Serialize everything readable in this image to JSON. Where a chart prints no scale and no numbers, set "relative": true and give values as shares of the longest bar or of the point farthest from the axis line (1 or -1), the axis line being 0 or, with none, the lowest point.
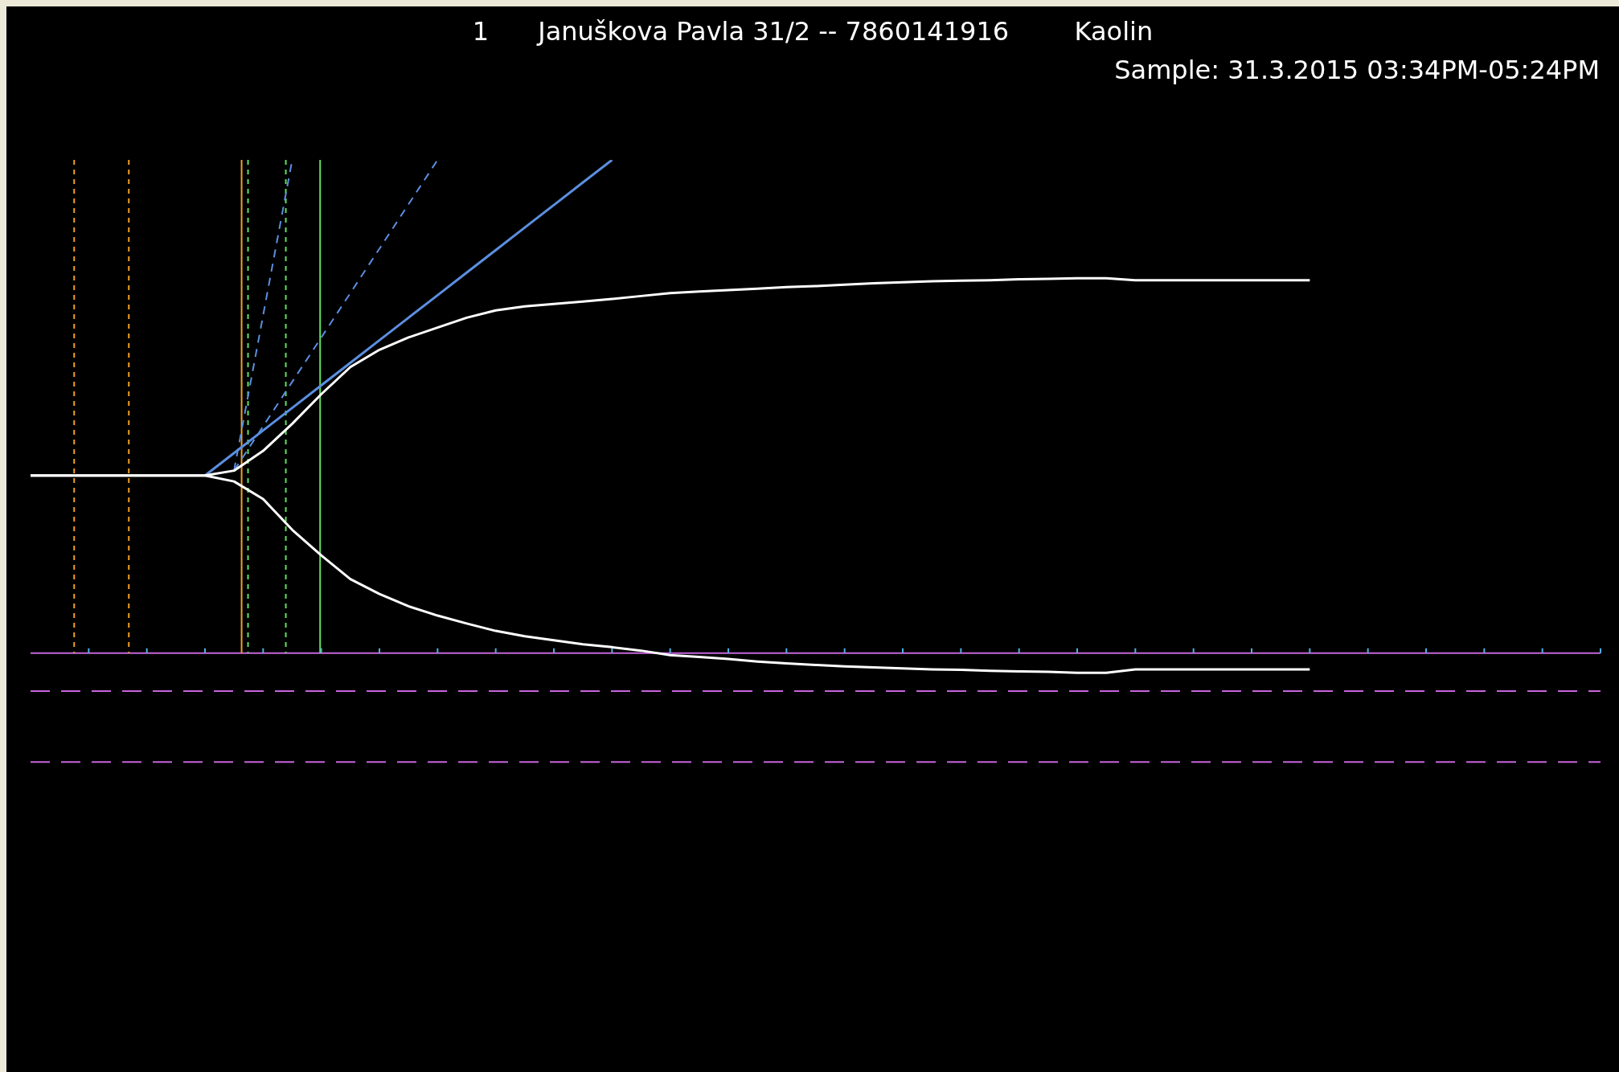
{
  "chart_data": {
    "type": "line",
    "title": "1      Januškova Pavla 31/2 -- 7860141916        Kaolin",
    "subtitle": "Sample: 31.3.2015 03:34PM-05:24PM",
    "relative": true,
    "legend": false,
    "grid": false,
    "marker": "none",
    "categories": [
      null,
      null,
      null,
      null,
      null,
      null,
      null,
      null,
      null,
      null,
      null,
      null,
      null,
      null,
      null,
      null,
      null,
      null,
      null,
      null,
      null,
      null,
      null,
      null,
      null,
      null,
      null,
      null,
      null,
      null,
      null,
      null,
      null,
      null,
      null,
      null,
      null,
      null,
      null,
      null,
      null,
      null,
      null,
      null,
      null,
      null,
      null,
      null,
      null,
      null,
      null,
      null,
      null,
      null,
      null
    ],
    "series": [
      {
        "color": "#ffffff",
        "line_style": "solid",
        "values": [
          0.36,
          0.36,
          0.36,
          0.36,
          0.36,
          0.36,
          0.36,
          0.37,
          0.41,
          0.465,
          0.525,
          0.58,
          0.615,
          0.64,
          0.66,
          0.68,
          0.695,
          0.703,
          0.708,
          0.713,
          0.718,
          0.724,
          0.73,
          0.733,
          0.736,
          0.739,
          0.742,
          0.744,
          0.747,
          0.75,
          0.752,
          0.754,
          0.755,
          0.756,
          0.758,
          0.759,
          0.76,
          0.76,
          0.756,
          0.756,
          0.756,
          0.756,
          0.756,
          0.756,
          0.756,
          null,
          null,
          null,
          null,
          null,
          null,
          null,
          null,
          null,
          null
        ]
      },
      {
        "color": "#ffffff",
        "line_style": "solid",
        "values": [
          0.36,
          0.36,
          0.36,
          0.36,
          0.36,
          0.36,
          0.36,
          0.348,
          0.3125,
          0.25,
          0.198,
          0.15,
          0.12,
          0.095,
          0.076,
          0.06,
          0.045,
          0.034,
          0.026,
          0.018,
          0.012,
          0.005,
          -0.004,
          -0.008,
          -0.012,
          -0.017,
          -0.021,
          -0.024,
          -0.027,
          -0.029,
          -0.031,
          -0.033,
          -0.034,
          -0.036,
          -0.037,
          -0.038,
          -0.04,
          -0.04,
          -0.033,
          -0.033,
          -0.033,
          -0.033,
          -0.033,
          -0.033,
          -0.033,
          null,
          null,
          null,
          null,
          null,
          null,
          null,
          null,
          null,
          null
        ]
      },
      {
        "color": "#5b8fe0",
        "line_style": "solid",
        "values": [
          null,
          null,
          null,
          null,
          null,
          null,
          0.36,
          0.4057,
          0.4514,
          0.4971,
          0.5429,
          0.5886,
          0.6343,
          0.68,
          0.7257,
          0.7714,
          0.8171,
          0.8629,
          0.9086,
          0.9543,
          1.0,
          null,
          null,
          null,
          null,
          null,
          null,
          null,
          null,
          null,
          null,
          null,
          null,
          null,
          null,
          null,
          null,
          null,
          null,
          null,
          null,
          null,
          null,
          null,
          null,
          null,
          null,
          null,
          null,
          null,
          null,
          null,
          null,
          null,
          null
        ]
      },
      {
        "color": "#5b8fe0",
        "line_style": "dashed",
        "values": [
          null,
          null,
          null,
          null,
          null,
          null,
          null,
          0.37,
          0.685,
          1.0,
          null,
          null,
          null,
          null,
          null,
          null,
          null,
          null,
          null,
          null,
          null,
          null,
          null,
          null,
          null,
          null,
          null,
          null,
          null,
          null,
          null,
          null,
          null,
          null,
          null,
          null,
          null,
          null,
          null,
          null,
          null,
          null,
          null,
          null,
          null,
          null,
          null,
          null,
          null,
          null,
          null,
          null,
          null,
          null,
          null
        ]
      },
      {
        "color": "#5b8fe0",
        "line_style": "dashed",
        "values": [
          null,
          null,
          null,
          null,
          null,
          null,
          null,
          0.37,
          0.46,
          0.55,
          0.64,
          0.73,
          0.82,
          0.91,
          1.0,
          null,
          null,
          null,
          null,
          null,
          null,
          null,
          null,
          null,
          null,
          null,
          null,
          null,
          null,
          null,
          null,
          null,
          null,
          null,
          null,
          null,
          null,
          null,
          null,
          null,
          null,
          null,
          null,
          null,
          null,
          null,
          null,
          null,
          null,
          null,
          null,
          null,
          null,
          null,
          null
        ]
      }
    ],
    "ref_lines": [
      {
        "axis": "y",
        "value": 0,
        "color": "#c864dc",
        "line_style": "solid"
      },
      {
        "axis": "y",
        "value": -0.077,
        "color": "#c864dc",
        "line_style": "dashed"
      },
      {
        "axis": "y",
        "value": -0.221,
        "color": "#c864dc",
        "line_style": "dashed"
      }
    ]
  }
}
